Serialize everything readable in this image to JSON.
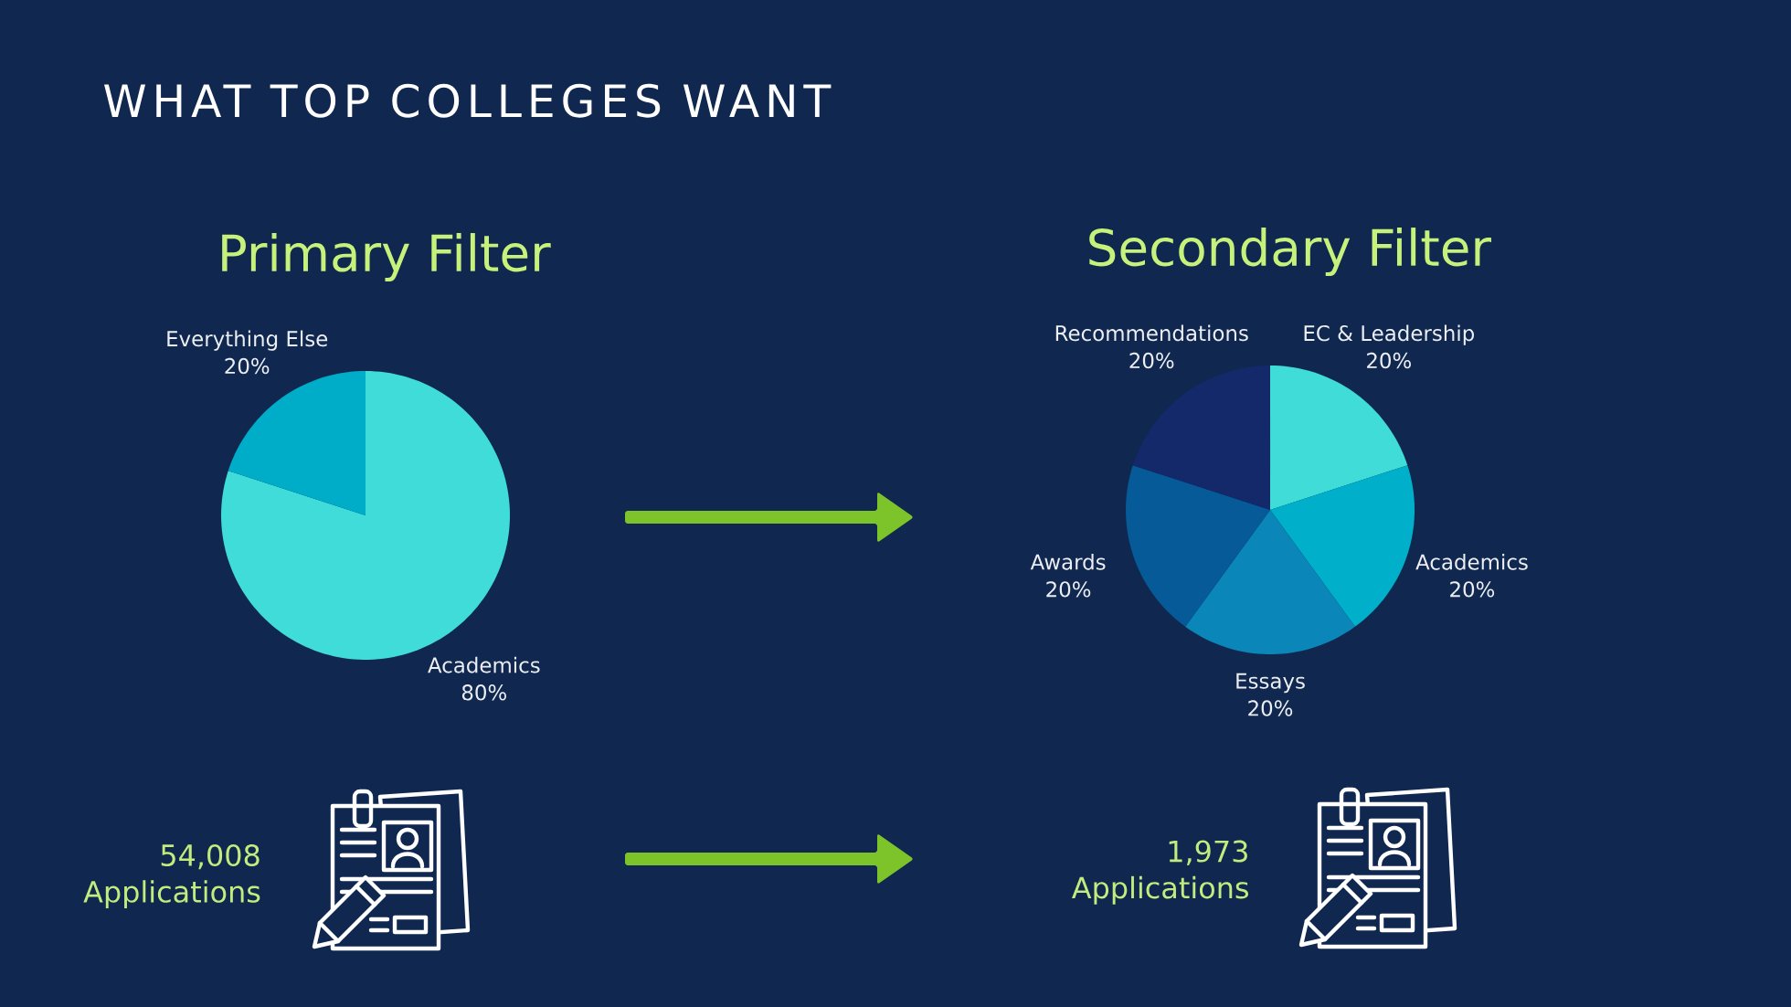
{
  "chart_data": [
    {
      "type": "other",
      "title": "WHAT TOP COLLEGES WANT"
    },
    {
      "type": "pie",
      "title": "Primary Filter",
      "categories": [
        "Academics",
        "Everything Else"
      ],
      "values": [
        80,
        20
      ],
      "value_labels": [
        "80%",
        "20%"
      ],
      "colors": [
        "#40dcd9",
        "#00adc9"
      ],
      "annotations": [
        "54,008 Applications"
      ]
    },
    {
      "type": "pie",
      "title": "Secondary Filter",
      "categories": [
        "EC & Leadership",
        "Academics",
        "Essays",
        "Awards",
        "Recommendations"
      ],
      "values": [
        20,
        20,
        20,
        20,
        20
      ],
      "value_labels": [
        "20%",
        "20%",
        "20%",
        "20%",
        "20%"
      ],
      "colors": [
        "#40dcd8",
        "#00b0cb",
        "#0a87b8",
        "#055a97",
        "#13296a"
      ],
      "annotations": [
        "1,973 Applications"
      ]
    }
  ]
}
